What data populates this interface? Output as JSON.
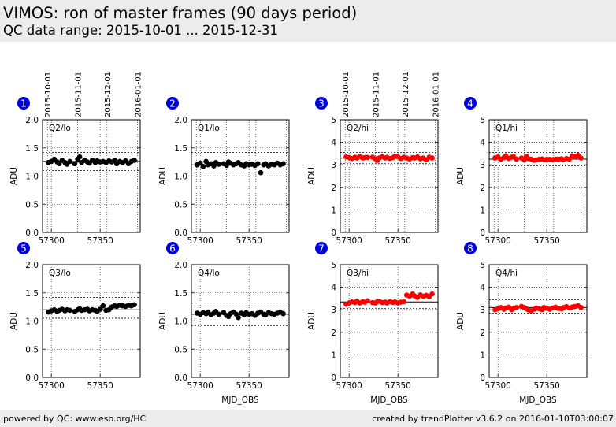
{
  "header": {
    "title": "VIMOS: ron of master frames (90 days period)",
    "subtitle": "QC data range: 2015-10-01 ... 2015-12-31"
  },
  "footer": {
    "left": "powered by QC: www.eso.org/HC",
    "right": "created by trendPlotter v3.6.2 on 2016-01-10T03:00:07"
  },
  "date_ticks": [
    {
      "label": "2015-10-01",
      "mjd": 57296
    },
    {
      "label": "2015-11-01",
      "mjd": 57327
    },
    {
      "label": "2015-12-01",
      "mjd": 57357
    },
    {
      "label": "2016-01-01",
      "mjd": 57388
    }
  ],
  "colors": {
    "lo": "#000000",
    "hi": "#ff0000",
    "badge": "#0000dd"
  },
  "chart_data": [
    {
      "type": "scatter",
      "panel": "1",
      "label": "Q2/lo",
      "series_color": "lo",
      "ylabel": "ADU",
      "xlabel": "",
      "xlim": [
        57291,
        57391
      ],
      "xticks": [
        57300,
        57350
      ],
      "ylim": [
        0,
        2.0
      ],
      "yticks": [
        "0.0",
        "0.5",
        "1.0",
        "1.5",
        "2.0"
      ],
      "grid": true,
      "ref": 1.26,
      "lim": [
        1.1,
        1.42
      ],
      "x": [
        57297,
        57300,
        57303,
        57306,
        57308,
        57311,
        57314,
        57316,
        57319,
        57324,
        57327,
        57329,
        57331,
        57334,
        57337,
        57339,
        57342,
        57345,
        57347,
        57350,
        57353,
        57356,
        57359,
        57362,
        57365,
        57367,
        57370,
        57373,
        57376,
        57379,
        57382,
        57385
      ],
      "y": [
        1.24,
        1.26,
        1.3,
        1.25,
        1.22,
        1.28,
        1.24,
        1.21,
        1.26,
        1.22,
        1.3,
        1.34,
        1.24,
        1.28,
        1.25,
        1.23,
        1.28,
        1.24,
        1.27,
        1.25,
        1.26,
        1.24,
        1.27,
        1.25,
        1.28,
        1.22,
        1.26,
        1.24,
        1.27,
        1.22,
        1.26,
        1.28
      ]
    },
    {
      "type": "scatter",
      "panel": "2",
      "label": "Q1/lo",
      "series_color": "lo",
      "ylabel": "ADU",
      "xlabel": "",
      "xlim": [
        57291,
        57391
      ],
      "xticks": [
        57300,
        57350
      ],
      "ylim": [
        0,
        2.0
      ],
      "yticks": [
        "0.0",
        "0.5",
        "1.0",
        "1.5",
        "2.0"
      ],
      "grid": true,
      "ref": 1.2,
      "lim": [
        1.0,
        1.42
      ],
      "x": [
        57297,
        57300,
        57303,
        57306,
        57308,
        57311,
        57314,
        57316,
        57319,
        57324,
        57327,
        57329,
        57331,
        57334,
        57337,
        57339,
        57342,
        57345,
        57347,
        57350,
        57353,
        57356,
        57359,
        57362,
        57365,
        57367,
        57370,
        57373,
        57376,
        57379,
        57382,
        57385
      ],
      "y": [
        1.2,
        1.23,
        1.17,
        1.26,
        1.2,
        1.22,
        1.18,
        1.24,
        1.21,
        1.22,
        1.19,
        1.25,
        1.23,
        1.2,
        1.22,
        1.24,
        1.2,
        1.18,
        1.22,
        1.2,
        1.21,
        1.19,
        1.22,
        1.06,
        1.2,
        1.22,
        1.18,
        1.21,
        1.2,
        1.23,
        1.2,
        1.22
      ]
    },
    {
      "type": "scatter",
      "panel": "3",
      "label": "Q2/hi",
      "series_color": "hi",
      "ylabel": "ADU",
      "xlabel": "",
      "xlim": [
        57291,
        57391
      ],
      "xticks": [
        57300,
        57350
      ],
      "ylim": [
        0,
        5
      ],
      "yticks": [
        "0",
        "1",
        "2",
        "3",
        "4",
        "5"
      ],
      "grid": true,
      "ref": 3.3,
      "lim": [
        3.05,
        3.55
      ],
      "x": [
        57297,
        57300,
        57303,
        57306,
        57308,
        57311,
        57314,
        57316,
        57319,
        57324,
        57327,
        57329,
        57331,
        57334,
        57337,
        57339,
        57342,
        57345,
        57347,
        57350,
        57353,
        57356,
        57359,
        57362,
        57365,
        57367,
        57370,
        57373,
        57376,
        57379,
        57382,
        57385
      ],
      "y": [
        3.35,
        3.32,
        3.28,
        3.34,
        3.3,
        3.36,
        3.3,
        3.32,
        3.33,
        3.34,
        3.27,
        3.2,
        3.3,
        3.36,
        3.3,
        3.33,
        3.28,
        3.32,
        3.38,
        3.35,
        3.28,
        3.34,
        3.3,
        3.26,
        3.32,
        3.3,
        3.35,
        3.27,
        3.3,
        3.22,
        3.34,
        3.3
      ]
    },
    {
      "type": "scatter",
      "panel": "4",
      "label": "Q1/hi",
      "series_color": "hi",
      "ylabel": "ADU",
      "xlabel": "",
      "xlim": [
        57291,
        57391
      ],
      "xticks": [
        57300,
        57350
      ],
      "ylim": [
        0,
        5
      ],
      "yticks": [
        "0",
        "1",
        "2",
        "3",
        "4",
        "5"
      ],
      "grid": true,
      "ref": 3.25,
      "lim": [
        2.95,
        3.55
      ],
      "x": [
        57297,
        57300,
        57303,
        57306,
        57308,
        57311,
        57314,
        57316,
        57319,
        57324,
        57327,
        57329,
        57331,
        57334,
        57337,
        57339,
        57342,
        57345,
        57347,
        57350,
        57353,
        57356,
        57359,
        57362,
        57365,
        57367,
        57370,
        57373,
        57376,
        57379,
        57382,
        57385
      ],
      "y": [
        3.3,
        3.35,
        3.25,
        3.32,
        3.4,
        3.28,
        3.34,
        3.36,
        3.25,
        3.3,
        3.22,
        3.38,
        3.28,
        3.25,
        3.2,
        3.22,
        3.24,
        3.26,
        3.22,
        3.25,
        3.24,
        3.23,
        3.26,
        3.25,
        3.27,
        3.22,
        3.28,
        3.25,
        3.4,
        3.35,
        3.42,
        3.3
      ]
    },
    {
      "type": "scatter",
      "panel": "5",
      "label": "Q3/lo",
      "series_color": "lo",
      "ylabel": "ADU",
      "xlabel": "",
      "xlim": [
        57291,
        57391
      ],
      "xticks": [
        57300,
        57350
      ],
      "ylim": [
        0,
        2.0
      ],
      "yticks": [
        "0.0",
        "0.5",
        "1.0",
        "1.5",
        "2.0"
      ],
      "grid": true,
      "ref": 1.2,
      "lim": [
        1.05,
        1.42
      ],
      "x": [
        57297,
        57300,
        57303,
        57306,
        57308,
        57311,
        57314,
        57316,
        57319,
        57324,
        57327,
        57329,
        57331,
        57334,
        57337,
        57339,
        57342,
        57345,
        57347,
        57350,
        57353,
        57356,
        57359,
        57362,
        57365,
        57367,
        57370,
        57373,
        57376,
        57379,
        57382,
        57385
      ],
      "y": [
        1.16,
        1.18,
        1.2,
        1.17,
        1.19,
        1.21,
        1.18,
        1.2,
        1.19,
        1.17,
        1.2,
        1.22,
        1.19,
        1.2,
        1.21,
        1.18,
        1.2,
        1.19,
        1.17,
        1.21,
        1.27,
        1.19,
        1.2,
        1.25,
        1.27,
        1.26,
        1.28,
        1.27,
        1.26,
        1.28,
        1.27,
        1.29
      ]
    },
    {
      "type": "scatter",
      "panel": "6",
      "label": "Q4/lo",
      "series_color": "lo",
      "ylabel": "ADU",
      "xlabel": "MJD_OBS",
      "xlim": [
        57291,
        57391
      ],
      "xticks": [
        57300,
        57350
      ],
      "ylim": [
        0,
        2.0
      ],
      "yticks": [
        "0.0",
        "0.5",
        "1.0",
        "1.5",
        "2.0"
      ],
      "grid": true,
      "ref": 1.12,
      "lim": [
        0.92,
        1.32
      ],
      "x": [
        57297,
        57300,
        57303,
        57306,
        57308,
        57311,
        57314,
        57316,
        57319,
        57324,
        57327,
        57329,
        57331,
        57334,
        57337,
        57339,
        57342,
        57345,
        57347,
        57350,
        57353,
        57356,
        57359,
        57362,
        57365,
        57367,
        57370,
        57373,
        57376,
        57379,
        57382,
        57385
      ],
      "y": [
        1.14,
        1.12,
        1.15,
        1.13,
        1.16,
        1.11,
        1.14,
        1.17,
        1.12,
        1.15,
        1.1,
        1.08,
        1.13,
        1.16,
        1.12,
        1.06,
        1.14,
        1.11,
        1.15,
        1.12,
        1.13,
        1.1,
        1.14,
        1.16,
        1.12,
        1.11,
        1.15,
        1.13,
        1.12,
        1.14,
        1.16,
        1.13
      ]
    },
    {
      "type": "scatter",
      "panel": "7",
      "label": "Q3/hi",
      "series_color": "hi",
      "ylabel": "ADU",
      "xlabel": "MJD_OBS",
      "xlim": [
        57291,
        57391
      ],
      "xticks": [
        57300,
        57350
      ],
      "ylim": [
        0,
        5
      ],
      "yticks": [
        "0",
        "1",
        "2",
        "3",
        "4",
        "5"
      ],
      "grid": true,
      "ref": 3.35,
      "lim": [
        3.05,
        4.15
      ],
      "x": [
        57297,
        57300,
        57303,
        57306,
        57308,
        57311,
        57314,
        57316,
        57319,
        57324,
        57327,
        57329,
        57331,
        57334,
        57337,
        57339,
        57342,
        57345,
        57347,
        57350,
        57353,
        57356,
        57359,
        57362,
        57365,
        57367,
        57370,
        57373,
        57376,
        57379,
        57382,
        57385
      ],
      "y": [
        3.25,
        3.3,
        3.35,
        3.32,
        3.38,
        3.3,
        3.36,
        3.34,
        3.4,
        3.32,
        3.3,
        3.36,
        3.38,
        3.32,
        3.34,
        3.3,
        3.36,
        3.33,
        3.35,
        3.3,
        3.34,
        3.36,
        3.65,
        3.6,
        3.7,
        3.62,
        3.55,
        3.66,
        3.6,
        3.64,
        3.58,
        3.7
      ]
    },
    {
      "type": "scatter",
      "panel": "8",
      "label": "Q4/hi",
      "series_color": "hi",
      "ylabel": "ADU",
      "xlabel": "MJD_OBS",
      "xlim": [
        57291,
        57391
      ],
      "xticks": [
        57300,
        57350
      ],
      "ylim": [
        0,
        5
      ],
      "yticks": [
        "0",
        "1",
        "2",
        "3",
        "4",
        "5"
      ],
      "grid": true,
      "ref": 3.1,
      "lim": [
        2.85,
        3.45
      ],
      "x": [
        57297,
        57300,
        57303,
        57306,
        57308,
        57311,
        57314,
        57316,
        57319,
        57324,
        57327,
        57329,
        57331,
        57334,
        57337,
        57339,
        57342,
        57345,
        57347,
        57350,
        57353,
        57356,
        57359,
        57362,
        57365,
        57367,
        57370,
        57373,
        57376,
        57379,
        57382,
        57385
      ],
      "y": [
        3.0,
        3.05,
        3.1,
        3.02,
        3.08,
        3.12,
        3.0,
        3.06,
        3.1,
        3.15,
        3.1,
        3.05,
        3.0,
        2.95,
        3.02,
        3.08,
        3.05,
        3.0,
        3.1,
        3.06,
        3.02,
        3.08,
        3.12,
        3.06,
        3.04,
        3.1,
        3.14,
        3.08,
        3.12,
        3.15,
        3.18,
        3.1
      ]
    }
  ]
}
